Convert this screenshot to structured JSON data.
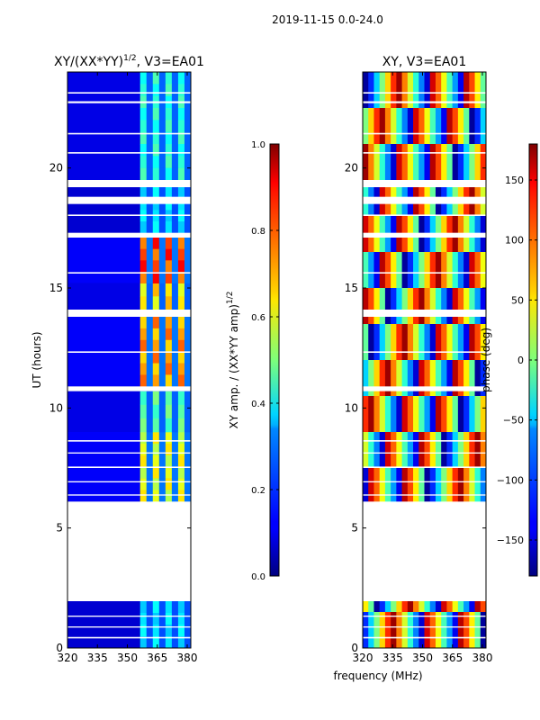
{
  "figure": {
    "suptitle": "2019-11-15 0.0-24.0",
    "shared_xlabel": "frequency (MHz)"
  },
  "chart_data": [
    {
      "type": "heatmap",
      "title": "XY/(XX*YY)",
      "title_exponent": "1/2",
      "title_suffix": ", V3=EA01",
      "ylabel": "UT (hours)",
      "xlim": [
        320,
        381.8
      ],
      "ylim": [
        0,
        24
      ],
      "xticks": [
        320,
        335,
        350,
        365,
        380
      ],
      "yticks": [
        0,
        5,
        10,
        15,
        20
      ],
      "colorbar": {
        "label": "XY amp. / (XX*YY amp)",
        "label_exponent": "1/2",
        "range": [
          0.0,
          1.0
        ],
        "ticks": [
          "0.0",
          "0.2",
          "0.4",
          "0.6",
          "0.8",
          "1.0"
        ],
        "tick_values": [
          0.0,
          0.2,
          0.4,
          0.6,
          0.8,
          1.0
        ]
      },
      "band_x": [
        320,
        356.4,
        381.8
      ],
      "bands": [
        {
          "t0": 0.0,
          "t1": 1.95,
          "low": 0.08,
          "high": 0.38
        },
        {
          "t0": 6.1,
          "t1": 9.0,
          "low": 0.12,
          "high": 0.65
        },
        {
          "t0": 9.0,
          "t1": 10.7,
          "low": 0.1,
          "high": 0.5
        },
        {
          "t0": 10.9,
          "t1": 13.8,
          "low": 0.12,
          "high": 0.78
        },
        {
          "t0": 14.1,
          "t1": 15.2,
          "low": 0.1,
          "high": 0.7
        },
        {
          "t0": 15.2,
          "t1": 17.1,
          "low": 0.12,
          "high": 0.88
        },
        {
          "t0": 17.3,
          "t1": 19.2,
          "low": 0.08,
          "high": 0.38
        },
        {
          "t0": 19.5,
          "t1": 24.0,
          "low": 0.1,
          "high": 0.45
        }
      ],
      "gaps": [
        [
          1.95,
          6.1
        ],
        [
          0.4,
          0.46
        ],
        [
          0.85,
          0.9
        ],
        [
          1.3,
          1.35
        ],
        [
          6.35,
          6.4
        ],
        [
          6.9,
          6.95
        ],
        [
          7.5,
          7.56
        ],
        [
          8.1,
          8.15
        ],
        [
          8.6,
          8.66
        ],
        [
          10.7,
          10.9
        ],
        [
          12.3,
          12.36
        ],
        [
          13.8,
          14.1
        ],
        [
          15.6,
          15.66
        ],
        [
          17.1,
          17.3
        ],
        [
          18.0,
          18.06
        ],
        [
          18.5,
          18.8
        ],
        [
          19.2,
          19.5
        ],
        [
          20.6,
          20.66
        ],
        [
          21.4,
          21.46
        ],
        [
          22.7,
          22.78
        ],
        [
          23.1,
          23.16
        ]
      ]
    },
    {
      "type": "heatmap",
      "title": "XY, V3=EA01",
      "xlim": [
        320,
        381.8
      ],
      "ylim": [
        0,
        24
      ],
      "xticks": [
        320,
        335,
        350,
        365,
        380
      ],
      "yticks": [
        0,
        5,
        10,
        15,
        20
      ],
      "colorbar": {
        "label": "phase (deg)",
        "range": [
          -180,
          180
        ],
        "ticks": [
          "-150",
          "-100",
          "-50",
          "0",
          "50",
          "100",
          "150"
        ],
        "tick_values": [
          -150,
          -100,
          -50,
          0,
          50,
          100,
          150
        ]
      },
      "stripes_deg": [
        -170,
        -120,
        -60,
        0,
        60,
        120,
        170,
        90,
        30,
        -30,
        -90,
        -150,
        150,
        100,
        40,
        -20,
        -80,
        -140,
        160,
        110,
        50,
        -10
      ],
      "gaps": [
        [
          1.95,
          6.1
        ],
        [
          0.4,
          0.46
        ],
        [
          0.85,
          0.9
        ],
        [
          1.3,
          1.35
        ],
        [
          6.35,
          6.4
        ],
        [
          6.9,
          6.95
        ],
        [
          7.5,
          7.56
        ],
        [
          8.1,
          8.15
        ],
        [
          8.6,
          8.66
        ],
        [
          10.7,
          10.9
        ],
        [
          12.3,
          12.36
        ],
        [
          13.8,
          14.1
        ],
        [
          15.6,
          15.66
        ],
        [
          17.1,
          17.3
        ],
        [
          18.0,
          18.06
        ],
        [
          18.5,
          18.8
        ],
        [
          19.2,
          19.5
        ],
        [
          20.6,
          20.66
        ],
        [
          21.4,
          21.46
        ],
        [
          22.7,
          22.78
        ],
        [
          23.1,
          23.16
        ]
      ]
    }
  ]
}
